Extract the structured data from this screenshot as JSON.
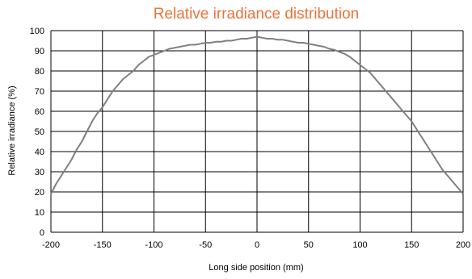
{
  "chart_data": {
    "type": "line",
    "title": "Relative irradiance distribution",
    "xlabel": "Long side position (mm)",
    "ylabel": "Relative irradiance (%)",
    "xlim": [
      -200,
      200
    ],
    "ylim": [
      0,
      100
    ],
    "xticks": [
      -200,
      -150,
      -100,
      -50,
      0,
      50,
      100,
      150,
      200
    ],
    "yticks": [
      0,
      10,
      20,
      30,
      40,
      50,
      60,
      70,
      80,
      90,
      100
    ],
    "grid": true,
    "legend": "none",
    "colors": {
      "title": "#e8743b",
      "line": "#7f7f7f",
      "grid": "#000000"
    },
    "series": [
      {
        "x": [
          -200,
          -195,
          -190,
          -185,
          -180,
          -175,
          -170,
          -165,
          -160,
          -155,
          -150,
          -145,
          -140,
          -135,
          -130,
          -125,
          -120,
          -115,
          -110,
          -105,
          -100,
          -95,
          -90,
          -85,
          -80,
          -75,
          -70,
          -65,
          -60,
          -55,
          -50,
          -45,
          -40,
          -35,
          -30,
          -25,
          -20,
          -15,
          -10,
          -5,
          0,
          5,
          10,
          15,
          20,
          25,
          30,
          35,
          40,
          45,
          50,
          55,
          60,
          65,
          70,
          75,
          80,
          85,
          90,
          95,
          100,
          105,
          110,
          115,
          120,
          125,
          130,
          135,
          140,
          145,
          150,
          155,
          160,
          165,
          170,
          175,
          180,
          185,
          190,
          195,
          200
        ],
        "values": [
          19,
          24,
          28,
          32,
          36,
          41,
          45,
          50,
          55,
          59,
          62,
          66,
          70,
          73,
          76,
          78,
          80,
          83,
          85,
          87,
          88,
          89,
          90,
          91,
          91.5,
          92,
          92.5,
          93,
          93,
          93.5,
          94,
          94,
          94.5,
          94.5,
          95,
          95,
          95.5,
          96,
          96,
          96.5,
          97,
          96.5,
          96,
          96,
          95.5,
          95.5,
          95,
          94.5,
          94,
          94,
          93.5,
          93,
          92.5,
          92,
          91,
          90.5,
          89.5,
          88.5,
          87,
          85,
          83,
          81,
          79,
          76,
          73,
          70,
          67,
          64,
          61,
          58,
          55,
          51,
          47,
          43,
          39,
          35,
          31,
          28,
          25,
          22,
          19
        ]
      }
    ]
  }
}
